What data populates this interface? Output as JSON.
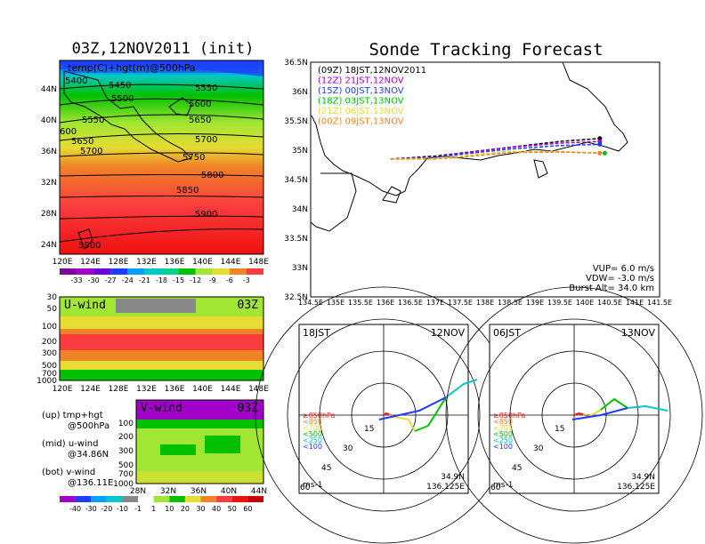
{
  "left_title": "03Z,12NOV2011 (init)",
  "main_title": "Sonde Tracking Forecast",
  "top_panel": {
    "label": "temp(C)+hgt(m)@500hPa",
    "lon_ticks": [
      "120E",
      "124E",
      "128E",
      "132E",
      "136E",
      "140E",
      "144E",
      "148E"
    ],
    "lat_ticks": [
      "44N",
      "40N",
      "36N",
      "32N",
      "28N",
      "24N"
    ],
    "contour_labels": [
      "5400",
      "5450",
      "5500",
      "5550",
      "5600",
      "5650",
      "5700",
      "5750",
      "5800",
      "5850",
      "5900",
      "5550",
      "5650",
      "5700",
      "600",
      "5900"
    ],
    "colorbar_labels": [
      "-33",
      "-30",
      "-27",
      "-24",
      "-21",
      "-18",
      "-15",
      "-12",
      "-9",
      "-6",
      "-3"
    ]
  },
  "uwind_panel": {
    "label": "U-wind",
    "time": "03Z",
    "p_ticks": [
      "30",
      "50",
      "100",
      "200",
      "300",
      "500",
      "700",
      "1000"
    ],
    "lon_ticks": [
      "120E",
      "124E",
      "128E",
      "132E",
      "136E",
      "140E",
      "144E",
      "148E"
    ]
  },
  "vwind_panel": {
    "label": "V-wind",
    "time": "03Z",
    "p_ticks": [
      "100",
      "200",
      "300",
      "500",
      "700",
      "1000"
    ],
    "lat_ticks": [
      "28N",
      "32N",
      "36N",
      "40N",
      "44N"
    ],
    "colorbar_labels": [
      "-40",
      "-30",
      "-20",
      "-10",
      "-1",
      "1",
      "10",
      "20",
      "30",
      "40",
      "50",
      "60"
    ]
  },
  "legend_notes": [
    {
      "line1": "(up) tmp+hgt",
      "line2": "@500hPa"
    },
    {
      "line1": "(mid) u-wind",
      "line2": "@34.86N"
    },
    {
      "line1": "(bot) v-wind",
      "line2": "@136.11E"
    }
  ],
  "track_map": {
    "lat_ticks": [
      "36.5N",
      "36N",
      "35.5N",
      "35N",
      "34.5N",
      "34N",
      "33.5N",
      "33N",
      "32.5N"
    ],
    "lon_ticks": [
      "134.5E",
      "135E",
      "135.5E",
      "136E",
      "136.5E",
      "137E",
      "137.5E",
      "138E",
      "138.5E",
      "139E",
      "139.5E",
      "140E",
      "140.5E",
      "141E",
      "141.5E"
    ],
    "legend": [
      {
        "text": "(09Z)  18JST,12NOV2011",
        "color": "#000000"
      },
      {
        "text": "(12Z)  21JST,12NOV",
        "color": "#a000c8"
      },
      {
        "text": "(15Z)  00JST,13NOV",
        "color": "#1e3cff"
      },
      {
        "text": "(18Z)  03JST,13NOV",
        "color": "#00c000"
      },
      {
        "text": "(21Z)  06JST,13NOV",
        "color": "#e6dc32"
      },
      {
        "text": "(00Z)  09JST,13NOV",
        "color": "#f08228"
      }
    ],
    "params": [
      "VUP=  6.0  m/s",
      "VDW=  -3.0  m/s",
      "Burst Alt=  34.0  km"
    ]
  },
  "hodographs": [
    {
      "left_label": "18JST",
      "right_label": "12NOV",
      "pos_lat": "34.9N",
      "pos_lon": "136.125E",
      "unit": "ms-1",
      "ring_labels": [
        "15",
        "30",
        "45",
        "60"
      ],
      "levels": [
        {
          "text": "≥850hPa",
          "color": "#f02020"
        },
        {
          "text": "<850",
          "color": "#f08228"
        },
        {
          "text": "<700",
          "color": "#e6dc32"
        },
        {
          "text": "<500",
          "color": "#00c000"
        },
        {
          "text": "<250",
          "color": "#00c8c8"
        },
        {
          "text": "<100",
          "color": "#1e3cff"
        }
      ]
    },
    {
      "left_label": "06JST",
      "right_label": "13NOV",
      "pos_lat": "34.9N",
      "pos_lon": "136.125E",
      "unit": "ms-1",
      "ring_labels": [
        "15",
        "30",
        "45",
        "60"
      ],
      "levels": [
        {
          "text": "≥850hPa",
          "color": "#f02020"
        },
        {
          "text": "<850",
          "color": "#f08228"
        },
        {
          "text": "<700",
          "color": "#e6dc32"
        },
        {
          "text": "<500",
          "color": "#00c000"
        },
        {
          "text": "<250",
          "color": "#00c8c8"
        },
        {
          "text": "<100",
          "color": "#1e3cff"
        }
      ]
    }
  ],
  "chart_data": [
    {
      "type": "line",
      "title": "Sonde Tracking Forecast",
      "xlim": [
        134.5,
        141.5
      ],
      "ylim": [
        32.5,
        36.5
      ],
      "series": [
        {
          "name": "(09Z)  18JST,12NOV2011",
          "x": [
            136.1,
            137.0,
            137.5,
            138.5,
            139.5,
            140.3
          ],
          "y": [
            34.85,
            34.9,
            34.95,
            35.05,
            35.15,
            35.2
          ]
        },
        {
          "name": "(12Z)  21JST,12NOV",
          "x": [
            136.1,
            137.0,
            137.5,
            138.5,
            139.5,
            140.3
          ],
          "y": [
            34.85,
            34.88,
            34.95,
            35.05,
            35.12,
            35.15
          ]
        },
        {
          "name": "(15Z)  00JST,13NOV",
          "x": [
            136.1,
            137.0,
            137.5,
            138.5,
            139.5,
            140.3
          ],
          "y": [
            34.85,
            34.87,
            34.93,
            35.02,
            35.08,
            35.1
          ]
        },
        {
          "name": "(18Z)  03JST,13NOV",
          "x": [
            136.1,
            137.0,
            137.5,
            138.5,
            139.5,
            140.4
          ],
          "y": [
            34.85,
            34.86,
            34.9,
            34.98,
            34.97,
            34.95
          ]
        },
        {
          "name": "(21Z)  06JST,13NOV",
          "x": [
            136.1,
            137.0,
            137.5,
            138.5,
            139.5,
            140.3
          ],
          "y": [
            34.85,
            34.86,
            34.9,
            34.98,
            34.98,
            34.95
          ]
        },
        {
          "name": "(00Z)  09JST,13NOV",
          "x": [
            136.1,
            137.0,
            137.5,
            138.5,
            139.5,
            140.3
          ],
          "y": [
            34.85,
            34.85,
            34.88,
            34.96,
            34.97,
            34.95
          ]
        }
      ]
    }
  ]
}
